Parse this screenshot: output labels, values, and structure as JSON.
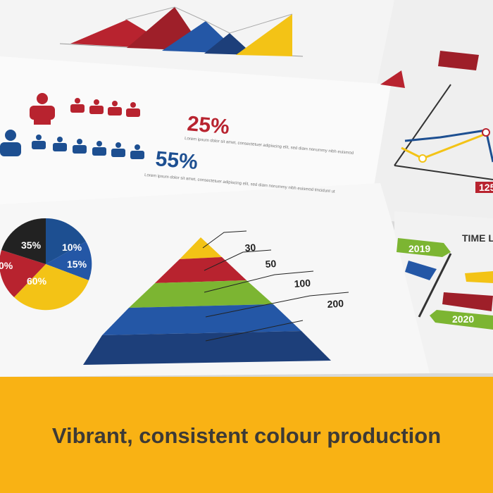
{
  "photo": {
    "headline_chart": {
      "stat_1": "25%",
      "stat_2": "55%",
      "body_text_1": "Lorem ipsum dolor sit amet, consectetuer adipiscing elit, sed diam nonummy nibh euismod",
      "body_text_2": "Lorem ipsum dolor sit amet, consectetuer adipiscing elit, sed diam nonummy nibh euismod tincidunt ut"
    },
    "pie_labels": [
      "35%",
      "10%",
      "15%",
      "60%",
      "0%"
    ],
    "pyramid_labels": [
      "30",
      "50",
      "100",
      "200"
    ],
    "line_chart_label": "125",
    "timeline": {
      "title": "TIME LIN",
      "years": [
        "2019",
        "2020"
      ]
    }
  },
  "caption": "Vibrant, consistent colour production"
}
